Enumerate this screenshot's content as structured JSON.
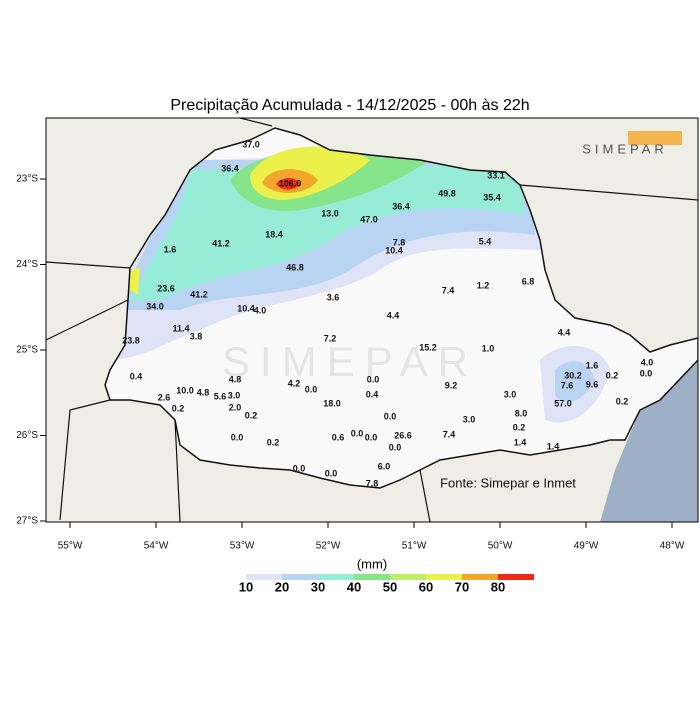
{
  "title": "Precipitação Acumulada - 14/12/2025 - 00h às 22h",
  "lat_labels": [
    "23°S",
    "24°S",
    "25°S",
    "26°S",
    "27°S"
  ],
  "lon_labels": [
    "55°W",
    "54°W",
    "53°W",
    "52°W",
    "51°W",
    "50°W",
    "49°W",
    "48°W"
  ],
  "logo": "SIMEPAR",
  "source": "Fonte: Simepar e Inmet",
  "stations": [
    "37.0",
    "36.4",
    "106.0",
    "33.1",
    "49.8",
    "35.4",
    "13.0",
    "47.0",
    "36.4",
    "18.4",
    "41.2",
    "1.6",
    "7.8",
    "10.4",
    "5.4",
    "46.8",
    "6.8",
    "1.2",
    "7.4",
    "23.6",
    "41.2",
    "3.6",
    "34.0",
    "10.4",
    "4.0",
    "4.4",
    "11.4",
    "3.8",
    "4.4",
    "23.8",
    "7.2",
    "15.2",
    "1.0",
    "0.4",
    "4.8",
    "4.2",
    "0.0",
    "0.0",
    "9.2",
    "30.2",
    "10.0",
    "4.8",
    "5.6",
    "3.0",
    "2.6",
    "0.4",
    "3.0",
    "57.0",
    "0.2",
    "2.0",
    "18.0",
    "0.0",
    "8.0",
    "0.2",
    "3.0",
    "0.2",
    "0.0",
    "0.6",
    "0.0",
    "0.0",
    "26.6",
    "7.4",
    "0.2",
    "0.0",
    "1.4",
    "1.4",
    "6.0",
    "0.0",
    "0.0",
    "7.8",
    "1.6",
    "7.6",
    "9.6",
    "0.2",
    "4.0",
    "0.0",
    "0.2"
  ],
  "legend": {
    "unit": "(mm)",
    "levels": [
      10,
      20,
      30,
      40,
      50,
      60,
      70,
      80
    ],
    "colors": [
      "#ffffff",
      "#dfe3f7",
      "#b9d3f3",
      "#97ecd8",
      "#86e48a",
      "#bdf06a",
      "#ecf04a",
      "#f4a52c",
      "#ee2a12"
    ]
  }
}
